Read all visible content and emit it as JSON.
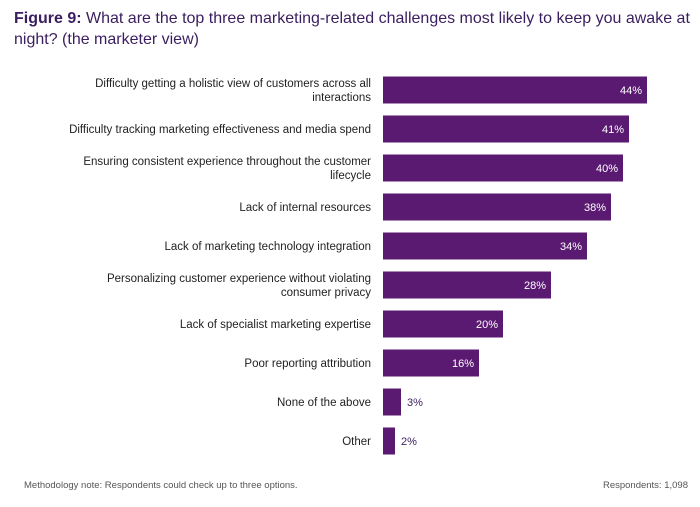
{
  "title": {
    "figure_label": "Figure 9:",
    "text": "What are the top three marketing-related challenges most likely to keep you awake at night? (the marketer view)"
  },
  "colors": {
    "bar": "#5b1a72"
  },
  "chart_data": {
    "type": "bar",
    "orientation": "horizontal",
    "categories": [
      [
        "Difficulty getting a holistic view of customers across all",
        "interactions"
      ],
      [
        "Difficulty tracking marketing effectiveness and media spend"
      ],
      [
        "Ensuring consistent experience throughout the customer",
        "lifecycle"
      ],
      [
        "Lack of internal resources"
      ],
      [
        "Lack of marketing technology integration"
      ],
      [
        "Personalizing customer experience without violating",
        "consumer privacy"
      ],
      [
        "Lack of specialist marketing expertise"
      ],
      [
        "Poor reporting attribution"
      ],
      [
        "None of the above"
      ],
      [
        "Other"
      ]
    ],
    "values": [
      44,
      41,
      40,
      38,
      34,
      28,
      20,
      16,
      3,
      2
    ],
    "value_labels": [
      "44%",
      "41%",
      "40%",
      "38%",
      "34%",
      "28%",
      "20%",
      "16%",
      "3%",
      "2%"
    ],
    "xlim": [
      0,
      100
    ],
    "unit": "%"
  },
  "footer": {
    "methodology_note": "Methodology note: Respondents could check up to three options.",
    "respondents": "Respondents: 1,098"
  }
}
